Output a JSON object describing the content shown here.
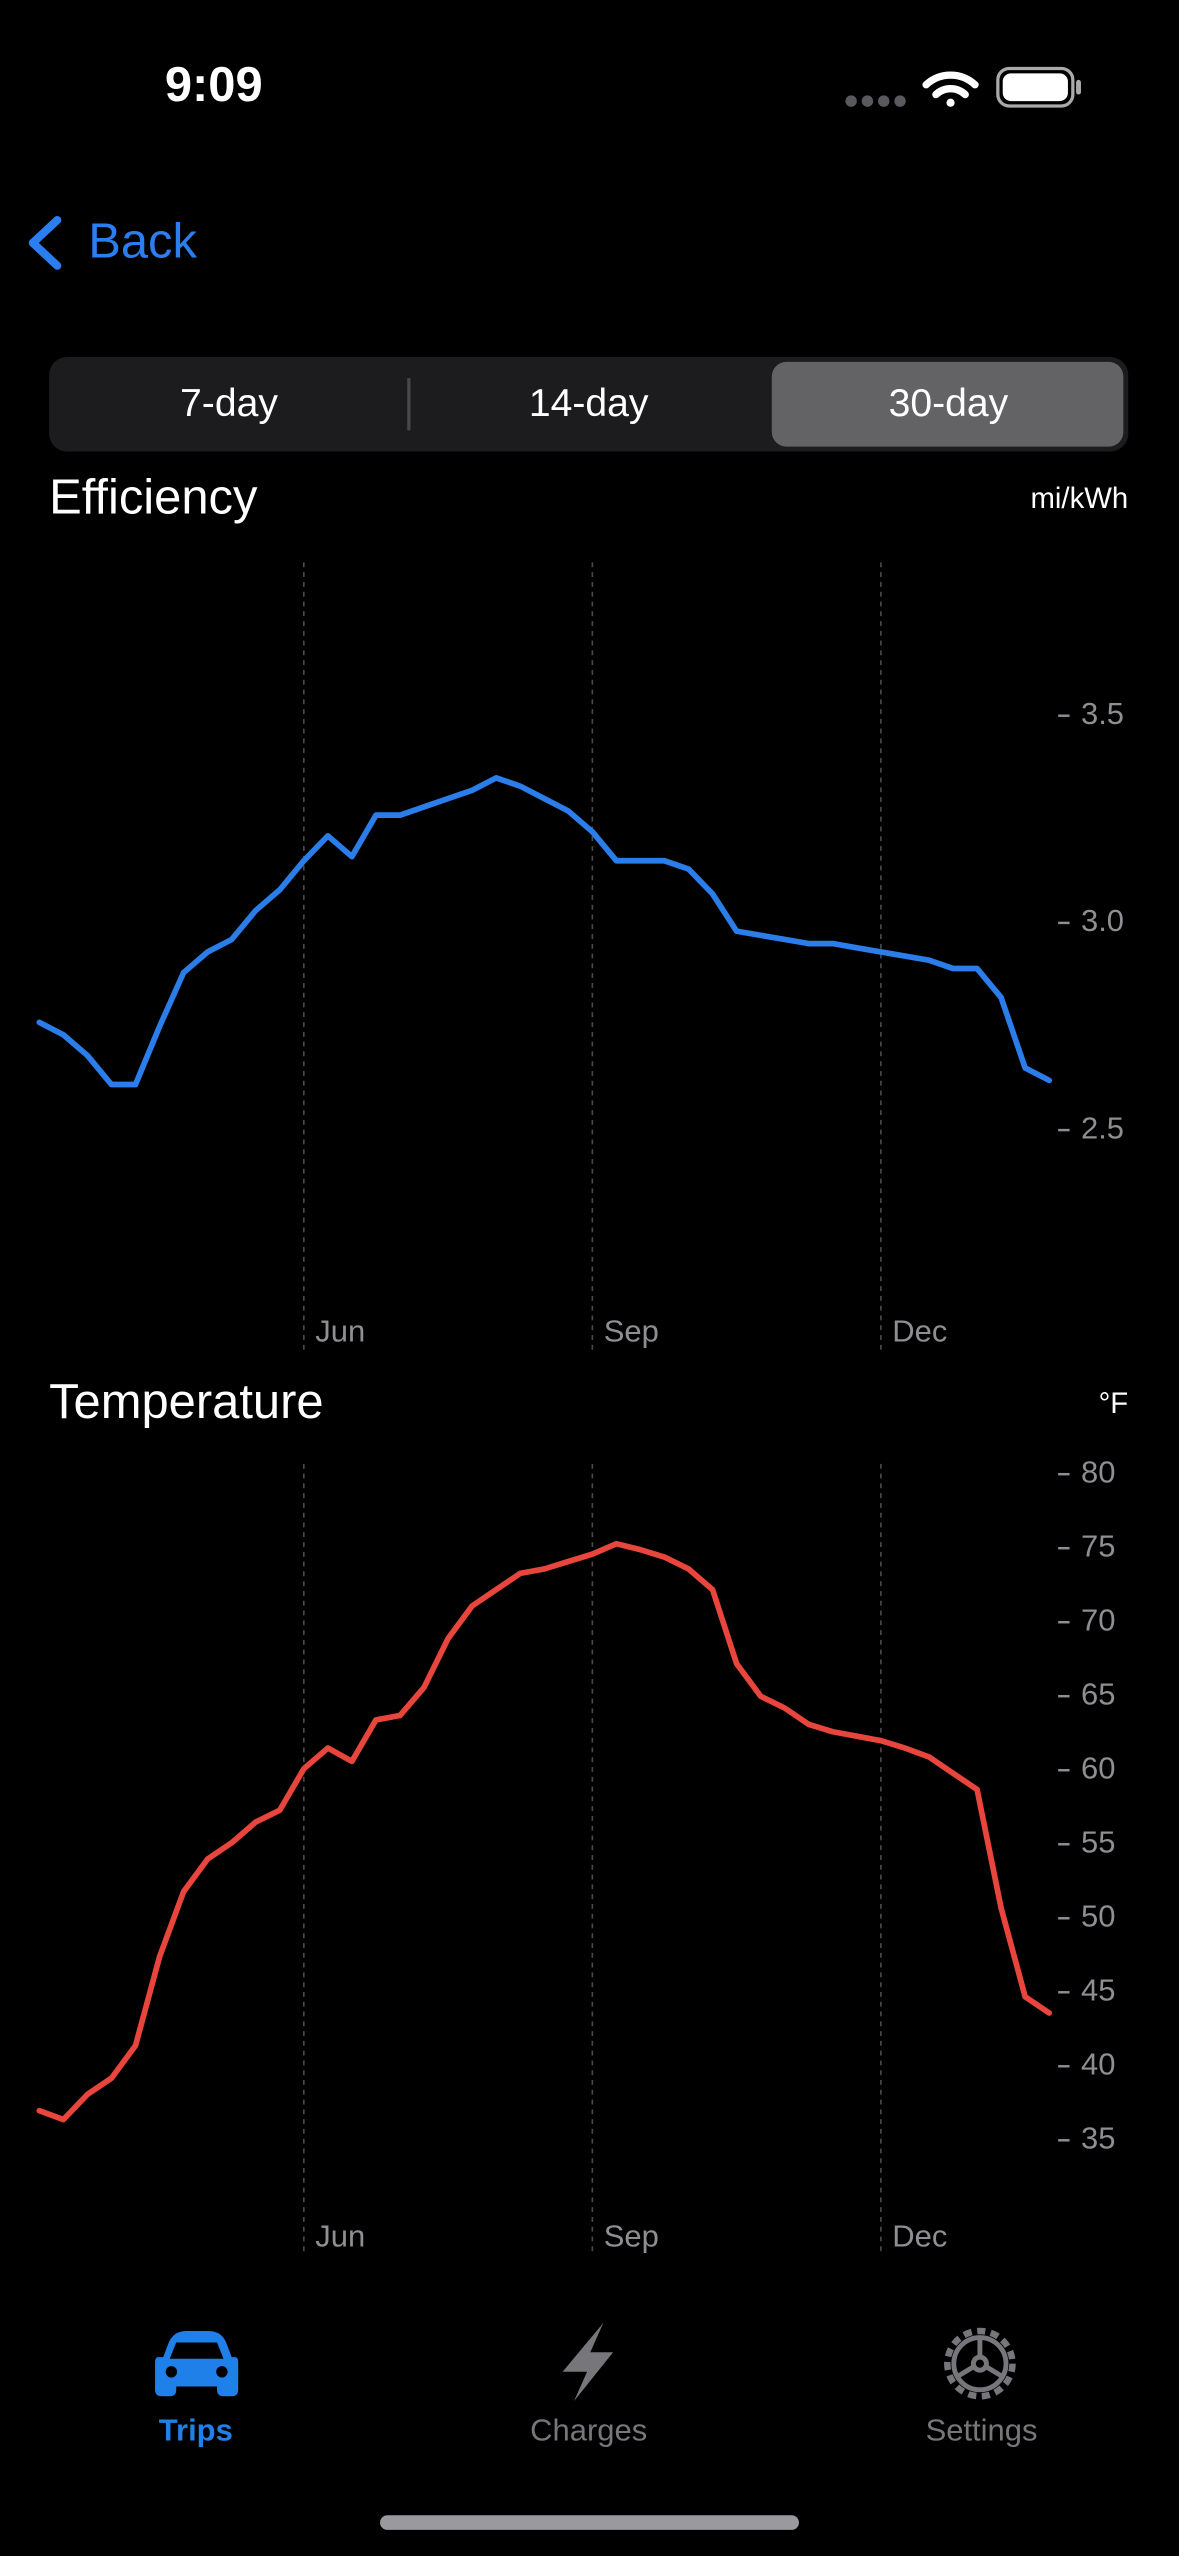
{
  "status_bar": {
    "time": "9:09"
  },
  "nav": {
    "back": "Back"
  },
  "segmented_control": {
    "options": [
      "7-day",
      "14-day",
      "30-day"
    ],
    "selected": 2
  },
  "chart_data": [
    {
      "type": "line",
      "title": "Efficiency",
      "unit": "mi/kWh",
      "color": "#2b7de9",
      "categories": [
        null,
        null,
        null,
        null,
        null,
        null,
        null,
        null,
        null,
        null,
        null,
        "Jun",
        null,
        null,
        null,
        null,
        null,
        null,
        null,
        null,
        null,
        null,
        null,
        "Sep",
        null,
        null,
        null,
        null,
        null,
        null,
        null,
        null,
        null,
        null,
        null,
        "Dec",
        null,
        null,
        null,
        null,
        null,
        null,
        null
      ],
      "values": [
        2.76,
        2.73,
        2.68,
        2.61,
        2.61,
        2.75,
        2.88,
        2.93,
        2.96,
        3.03,
        3.08,
        3.15,
        3.21,
        3.16,
        3.26,
        3.26,
        3.28,
        3.3,
        3.32,
        3.35,
        3.33,
        3.3,
        3.27,
        3.22,
        3.15,
        3.15,
        3.15,
        3.13,
        3.07,
        2.98,
        2.97,
        2.96,
        2.95,
        2.95,
        2.94,
        2.93,
        2.92,
        2.91,
        2.89,
        2.89,
        2.82,
        2.65,
        2.62
      ],
      "ylim": [
        1.97,
        3.87
      ],
      "yticks": [
        2.5,
        {
          "value": 3,
          "label": "3.0"
        },
        3.5
      ],
      "grid": true
    },
    {
      "type": "line",
      "title": "Temperature",
      "unit": "°F",
      "color": "#e8453c",
      "categories": [
        null,
        null,
        null,
        null,
        null,
        null,
        null,
        null,
        null,
        null,
        null,
        "Jun",
        null,
        null,
        null,
        null,
        null,
        null,
        null,
        null,
        null,
        null,
        null,
        "Sep",
        null,
        null,
        null,
        null,
        null,
        null,
        null,
        null,
        null,
        null,
        null,
        "Dec",
        null,
        null,
        null,
        null,
        null,
        null,
        null
      ],
      "values": [
        37.0,
        36.4,
        38.1,
        39.2,
        41.4,
        47.4,
        51.8,
        54.0,
        55.1,
        56.5,
        57.3,
        60.1,
        61.5,
        60.6,
        63.4,
        63.7,
        65.6,
        68.9,
        71.1,
        72.2,
        73.3,
        73.6,
        74.1,
        74.6,
        75.3,
        74.9,
        74.4,
        73.6,
        72.2,
        67.2,
        65.0,
        64.2,
        63.1,
        62.6,
        62.3,
        62.0,
        61.5,
        60.9,
        59.8,
        58.7,
        50.7,
        44.7,
        43.6
      ],
      "ylim": [
        27.4,
        80.7
      ],
      "yticks": [
        35,
        40,
        45,
        50,
        55,
        60,
        65,
        70,
        75,
        80
      ],
      "grid": true
    }
  ],
  "tab_bar": {
    "tabs": [
      "Trips",
      "Charges",
      "Settings"
    ],
    "selected": 0
  }
}
